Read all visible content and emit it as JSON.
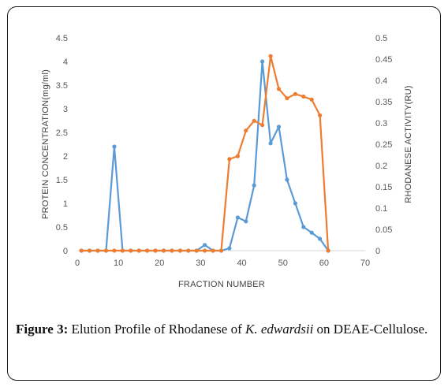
{
  "chart_data": {
    "type": "line",
    "xlabel": "FRACTION NUMBER",
    "ylabel_left": "PROTEIN CONCENTRATION(mg/ml)",
    "ylabel_right": "RHODANESE  ACTIVITY(RU)",
    "xlim": [
      0,
      70
    ],
    "ylim_left": [
      0,
      4.5
    ],
    "ylim_right": [
      0,
      0.5
    ],
    "grid": false,
    "x_ticks": [
      "0",
      "10",
      "20",
      "30",
      "40",
      "50",
      "60",
      "70"
    ],
    "y_left_ticks": [
      "0",
      "0.5",
      "1",
      "1.5",
      "2",
      "2.5",
      "3",
      "3.5",
      "4",
      "4.5"
    ],
    "y_right_ticks": [
      "0",
      "0.05",
      "0.1",
      "0.15",
      "0.2",
      "0.25",
      "0.3",
      "0.35",
      "0.4",
      "0.45",
      "0.5"
    ],
    "series": [
      {
        "axis": "left",
        "color": "#5b9bd5",
        "x": [
          1,
          3,
          5,
          7,
          9,
          11,
          13,
          15,
          17,
          19,
          21,
          23,
          25,
          27,
          29,
          31,
          33,
          35,
          37,
          39,
          41,
          43,
          45,
          47,
          49,
          51,
          53,
          55,
          57,
          59,
          61
        ],
        "values": [
          0,
          0,
          0,
          0,
          2.2,
          0,
          0,
          0,
          0,
          0,
          0,
          0,
          0,
          0,
          0,
          0.12,
          0,
          0,
          0.05,
          0.7,
          0.62,
          1.38,
          4.0,
          2.27,
          2.62,
          1.5,
          1.0,
          0.5,
          0.38,
          0.25,
          0
        ]
      },
      {
        "axis": "right",
        "color": "#ed7d31",
        "x": [
          1,
          3,
          5,
          7,
          9,
          11,
          13,
          15,
          17,
          19,
          21,
          23,
          25,
          27,
          29,
          31,
          33,
          35,
          37,
          39,
          41,
          43,
          45,
          47,
          49,
          51,
          53,
          55,
          57,
          59,
          61
        ],
        "values": [
          0,
          0,
          0,
          0,
          0,
          0,
          0,
          0,
          0,
          0,
          0,
          0,
          0,
          0,
          0,
          0,
          0,
          0,
          0.215,
          0.222,
          0.282,
          0.305,
          0.295,
          0.457,
          0.38,
          0.358,
          0.368,
          0.362,
          0.355,
          0.318,
          0
        ]
      }
    ]
  },
  "caption": {
    "label": "Figure 3:",
    "text_before": " Elution Profile of Rhodanese of ",
    "species": "K. edwardsii",
    "text_after": " on DEAE-Cellulose."
  }
}
